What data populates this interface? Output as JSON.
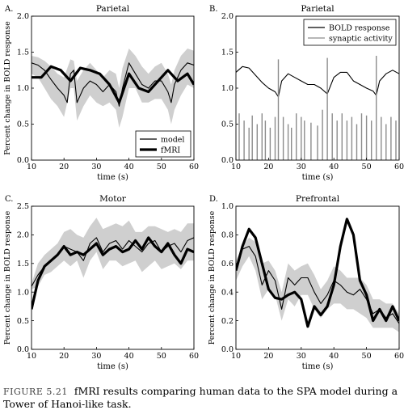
{
  "caption": {
    "label": "FIGURE 5.21",
    "text": "fMRI results comparing human data to the SPA model during a Tower of Hanoi-like task."
  },
  "chart_data": [
    {
      "panel": "A.",
      "type": "line",
      "title": "Parietal",
      "xlabel": "time (s)",
      "ylabel": "Percent change in BOLD response",
      "xlim": [
        10,
        60
      ],
      "ylim": [
        0.0,
        2.0
      ],
      "xticks": [
        10,
        20,
        30,
        40,
        50,
        60
      ],
      "yticks": [
        0.0,
        0.5,
        1.0,
        1.5,
        2.0
      ],
      "legend": "bottom-right",
      "band": {
        "x": [
          10,
          12,
          14,
          16,
          18,
          20,
          22,
          23,
          24,
          26,
          28,
          30,
          32,
          34,
          36,
          37,
          38,
          40,
          42,
          44,
          46,
          48,
          50,
          52,
          53,
          54,
          56,
          58,
          60
        ],
        "upper": [
          1.45,
          1.43,
          1.38,
          1.3,
          1.2,
          1.15,
          1.4,
          1.38,
          1.1,
          1.25,
          1.35,
          1.25,
          1.15,
          1.25,
          1.2,
          1.0,
          1.28,
          1.55,
          1.45,
          1.3,
          1.2,
          1.3,
          1.35,
          1.2,
          1.05,
          1.25,
          1.45,
          1.55,
          1.52
        ],
        "lower": [
          1.2,
          1.15,
          1.0,
          0.85,
          0.75,
          0.6,
          1.0,
          1.0,
          0.55,
          0.75,
          0.9,
          0.8,
          0.75,
          0.8,
          0.7,
          0.45,
          0.6,
          1.0,
          1.0,
          0.8,
          0.8,
          0.85,
          0.85,
          0.7,
          0.5,
          0.7,
          0.9,
          1.05,
          1.0
        ]
      },
      "series": [
        {
          "name": "model",
          "style": "thin",
          "x": [
            10,
            12,
            14,
            16,
            18,
            20,
            21,
            22,
            23,
            24,
            26,
            28,
            30,
            32,
            34,
            36,
            37,
            38,
            40,
            42,
            44,
            46,
            48,
            50,
            52,
            53,
            54,
            56,
            58,
            60
          ],
          "y": [
            1.35,
            1.32,
            1.25,
            1.12,
            1.0,
            0.9,
            0.8,
            1.2,
            1.25,
            0.8,
            1.0,
            1.1,
            1.05,
            0.95,
            1.05,
            0.95,
            0.75,
            1.0,
            1.35,
            1.2,
            1.05,
            1.0,
            1.1,
            1.1,
            0.95,
            0.8,
            1.05,
            1.25,
            1.35,
            1.32
          ]
        },
        {
          "name": "fMRI",
          "style": "thick",
          "x": [
            10,
            13,
            16,
            19,
            22,
            25,
            28,
            31,
            34,
            37,
            40,
            43,
            46,
            49,
            52,
            55,
            58,
            60
          ],
          "y": [
            1.15,
            1.15,
            1.3,
            1.25,
            1.1,
            1.28,
            1.25,
            1.2,
            1.05,
            0.8,
            1.2,
            1.0,
            0.95,
            1.1,
            1.25,
            1.1,
            1.2,
            1.05
          ]
        }
      ]
    },
    {
      "panel": "B.",
      "type": "line",
      "title": "Parietal",
      "xlabel": "time (s)",
      "ylim": [
        0.0,
        2.0
      ],
      "xlim": [
        10,
        60
      ],
      "xticks": [
        10,
        20,
        30,
        40,
        50,
        60
      ],
      "yticks": [
        0.0,
        0.5,
        1.0,
        1.5,
        2.0
      ],
      "legend": "top-right",
      "series": [
        {
          "name": "BOLD response",
          "style": "thin",
          "x": [
            10,
            12,
            14,
            16,
            18,
            20,
            22,
            23,
            24,
            26,
            28,
            30,
            32,
            34,
            36,
            38,
            40,
            42,
            44,
            46,
            48,
            50,
            52,
            53,
            54,
            56,
            58,
            60
          ],
          "y": [
            1.22,
            1.3,
            1.28,
            1.18,
            1.08,
            1.0,
            0.95,
            0.88,
            1.1,
            1.2,
            1.15,
            1.1,
            1.05,
            1.05,
            1.0,
            0.92,
            1.15,
            1.22,
            1.22,
            1.1,
            1.05,
            1.0,
            0.96,
            0.9,
            1.1,
            1.2,
            1.25,
            1.2
          ]
        },
        {
          "name": "synaptic activity",
          "style": "spikes",
          "spikes": [
            [
              11,
              0.65
            ],
            [
              12.5,
              0.55
            ],
            [
              14,
              0.45
            ],
            [
              15,
              0.62
            ],
            [
              16.5,
              0.5
            ],
            [
              18,
              0.65
            ],
            [
              19,
              0.55
            ],
            [
              20.5,
              0.45
            ],
            [
              22,
              0.6
            ],
            [
              23,
              1.4
            ],
            [
              24.5,
              0.6
            ],
            [
              26,
              0.5
            ],
            [
              27,
              0.45
            ],
            [
              28.5,
              0.65
            ],
            [
              30,
              0.6
            ],
            [
              31,
              0.55
            ],
            [
              33,
              0.52
            ],
            [
              35,
              0.48
            ],
            [
              36.5,
              0.7
            ],
            [
              38,
              1.42
            ],
            [
              39.5,
              0.65
            ],
            [
              41,
              0.55
            ],
            [
              42.5,
              0.65
            ],
            [
              44,
              0.55
            ],
            [
              45.5,
              0.6
            ],
            [
              47,
              0.5
            ],
            [
              48.5,
              0.65
            ],
            [
              50,
              0.62
            ],
            [
              51.5,
              0.55
            ],
            [
              53,
              1.45
            ],
            [
              54.5,
              0.6
            ],
            [
              56,
              0.5
            ],
            [
              57.5,
              0.6
            ],
            [
              59,
              0.55
            ]
          ]
        }
      ]
    },
    {
      "panel": "C.",
      "type": "line",
      "title": "Motor",
      "xlabel": "time (s)",
      "ylabel": "Percent change in BOLD response",
      "xlim": [
        10,
        60
      ],
      "ylim": [
        0.0,
        2.5
      ],
      "xticks": [
        10,
        20,
        30,
        40,
        50,
        60
      ],
      "yticks": [
        0.0,
        0.5,
        1.0,
        1.5,
        2.0,
        2.5
      ],
      "band": {
        "x": [
          10,
          12,
          14,
          16,
          18,
          20,
          22,
          24,
          26,
          28,
          30,
          32,
          34,
          36,
          38,
          40,
          42,
          44,
          46,
          48,
          50,
          52,
          54,
          56,
          58,
          60
        ],
        "upper": [
          1.15,
          1.5,
          1.65,
          1.75,
          1.85,
          2.05,
          2.1,
          2.0,
          1.95,
          2.15,
          2.3,
          2.1,
          2.15,
          2.2,
          2.15,
          2.25,
          2.05,
          2.05,
          2.15,
          2.15,
          2.1,
          2.05,
          2.1,
          2.05,
          2.2,
          2.2
        ],
        "lower": [
          1.05,
          1.1,
          1.3,
          1.35,
          1.45,
          1.55,
          1.45,
          1.55,
          1.25,
          1.55,
          1.7,
          1.4,
          1.55,
          1.55,
          1.45,
          1.5,
          1.55,
          1.35,
          1.45,
          1.55,
          1.4,
          1.45,
          1.5,
          1.4,
          1.55,
          1.55
        ]
      },
      "series": [
        {
          "name": "model",
          "style": "thin",
          "x": [
            10,
            12,
            14,
            16,
            18,
            20,
            22,
            24,
            26,
            28,
            30,
            32,
            34,
            36,
            38,
            40,
            42,
            44,
            46,
            48,
            50,
            52,
            54,
            56,
            58,
            60
          ],
          "y": [
            1.1,
            1.3,
            1.45,
            1.55,
            1.65,
            1.8,
            1.75,
            1.7,
            1.55,
            1.85,
            1.95,
            1.7,
            1.85,
            1.9,
            1.75,
            1.9,
            1.8,
            1.7,
            1.85,
            1.9,
            1.7,
            1.8,
            1.85,
            1.7,
            1.9,
            1.95
          ]
        },
        {
          "name": "fMRI",
          "style": "thick",
          "x": [
            10,
            12,
            14,
            16,
            18,
            20,
            22,
            24,
            26,
            28,
            30,
            32,
            34,
            36,
            38,
            40,
            42,
            44,
            46,
            48,
            50,
            52,
            54,
            56,
            58,
            60
          ],
          "y": [
            0.7,
            1.2,
            1.45,
            1.55,
            1.65,
            1.8,
            1.65,
            1.7,
            1.65,
            1.75,
            1.85,
            1.65,
            1.75,
            1.8,
            1.7,
            1.75,
            1.9,
            1.75,
            1.95,
            1.8,
            1.7,
            1.85,
            1.65,
            1.5,
            1.75,
            1.7
          ]
        }
      ]
    },
    {
      "panel": "D.",
      "type": "line",
      "title": "Prefrontal",
      "xlabel": "time (s)",
      "ylabel": "Percent change in BOLD response",
      "xlim": [
        10,
        60
      ],
      "ylim": [
        0.0,
        1.0
      ],
      "xticks": [
        10,
        20,
        30,
        40,
        50,
        60
      ],
      "yticks": [
        0.0,
        0.2,
        0.4,
        0.6,
        0.8,
        1.0
      ],
      "band": {
        "x": [
          10,
          12,
          14,
          16,
          18,
          20,
          22,
          24,
          26,
          28,
          30,
          32,
          34,
          36,
          38,
          40,
          42,
          44,
          46,
          48,
          50,
          52,
          54,
          56,
          58,
          60
        ],
        "upper": [
          0.62,
          0.72,
          0.78,
          0.75,
          0.6,
          0.62,
          0.55,
          0.4,
          0.6,
          0.55,
          0.58,
          0.6,
          0.52,
          0.42,
          0.48,
          0.58,
          0.55,
          0.5,
          0.5,
          0.5,
          0.45,
          0.35,
          0.35,
          0.32,
          0.32,
          0.25
        ],
        "lower": [
          0.48,
          0.58,
          0.65,
          0.55,
          0.35,
          0.42,
          0.38,
          0.2,
          0.35,
          0.3,
          0.38,
          0.38,
          0.28,
          0.22,
          0.28,
          0.32,
          0.32,
          0.28,
          0.28,
          0.25,
          0.22,
          0.15,
          0.15,
          0.15,
          0.15,
          0.12
        ]
      },
      "series": [
        {
          "name": "model",
          "style": "thin",
          "x": [
            10,
            12,
            14,
            16,
            18,
            20,
            22,
            24,
            26,
            28,
            30,
            32,
            34,
            36,
            38,
            40,
            42,
            44,
            46,
            48,
            50,
            52,
            54,
            56,
            58,
            60
          ],
          "y": [
            0.55,
            0.7,
            0.72,
            0.65,
            0.45,
            0.55,
            0.48,
            0.28,
            0.5,
            0.45,
            0.5,
            0.5,
            0.4,
            0.32,
            0.38,
            0.48,
            0.45,
            0.4,
            0.38,
            0.42,
            0.35,
            0.25,
            0.28,
            0.22,
            0.25,
            0.18
          ]
        },
        {
          "name": "fMRI",
          "style": "thick",
          "x": [
            10,
            12,
            14,
            16,
            18,
            20,
            22,
            24,
            26,
            28,
            30,
            32,
            34,
            36,
            38,
            40,
            42,
            44,
            46,
            48,
            50,
            52,
            54,
            56,
            58,
            60
          ],
          "y": [
            0.55,
            0.72,
            0.84,
            0.78,
            0.6,
            0.42,
            0.36,
            0.35,
            0.38,
            0.4,
            0.35,
            0.16,
            0.3,
            0.24,
            0.3,
            0.45,
            0.72,
            0.91,
            0.8,
            0.48,
            0.38,
            0.2,
            0.28,
            0.2,
            0.3,
            0.2
          ]
        }
      ]
    }
  ]
}
